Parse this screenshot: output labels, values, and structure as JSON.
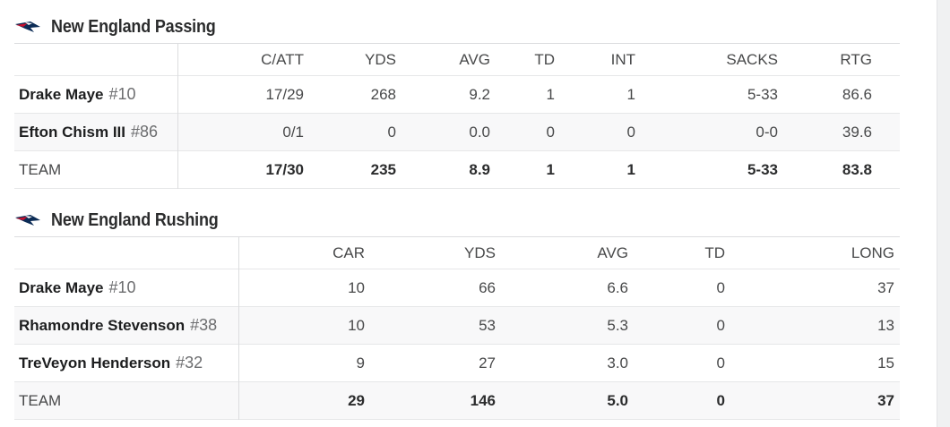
{
  "passing": {
    "title": "New England Passing",
    "columns": [
      "C/ATT",
      "YDS",
      "AVG",
      "TD",
      "INT",
      "SACKS",
      "RTG"
    ],
    "rows": [
      {
        "name": "Drake Maye",
        "num": "#10",
        "cells": [
          "17/29",
          "268",
          "9.2",
          "1",
          "1",
          "5-33",
          "86.6"
        ]
      },
      {
        "name": "Efton Chism III",
        "num": "#86",
        "cells": [
          "0/1",
          "0",
          "0.0",
          "0",
          "0",
          "0-0",
          "39.6"
        ]
      }
    ],
    "team": {
      "label": "TEAM",
      "cells": [
        "17/30",
        "235",
        "8.9",
        "1",
        "1",
        "5-33",
        "83.8"
      ]
    }
  },
  "rushing": {
    "title": "New England Rushing",
    "columns": [
      "CAR",
      "YDS",
      "AVG",
      "TD",
      "LONG"
    ],
    "rows": [
      {
        "name": "Drake Maye",
        "num": "#10",
        "cells": [
          "10",
          "66",
          "6.6",
          "0",
          "37"
        ]
      },
      {
        "name": "Rhamondre Stevenson",
        "num": "#38",
        "cells": [
          "10",
          "53",
          "5.3",
          "0",
          "13"
        ]
      },
      {
        "name": "TreVeyon Henderson",
        "num": "#32",
        "cells": [
          "9",
          "27",
          "3.0",
          "0",
          "15"
        ]
      }
    ],
    "team": {
      "label": "TEAM",
      "cells": [
        "29",
        "146",
        "5.0",
        "0",
        "37"
      ]
    }
  },
  "icons": {
    "team_logo": "patriots-logo-icon"
  },
  "colors": {
    "logo_navy": "#0c2c56",
    "logo_red": "#c8102e",
    "text": "#2b2c2d"
  }
}
